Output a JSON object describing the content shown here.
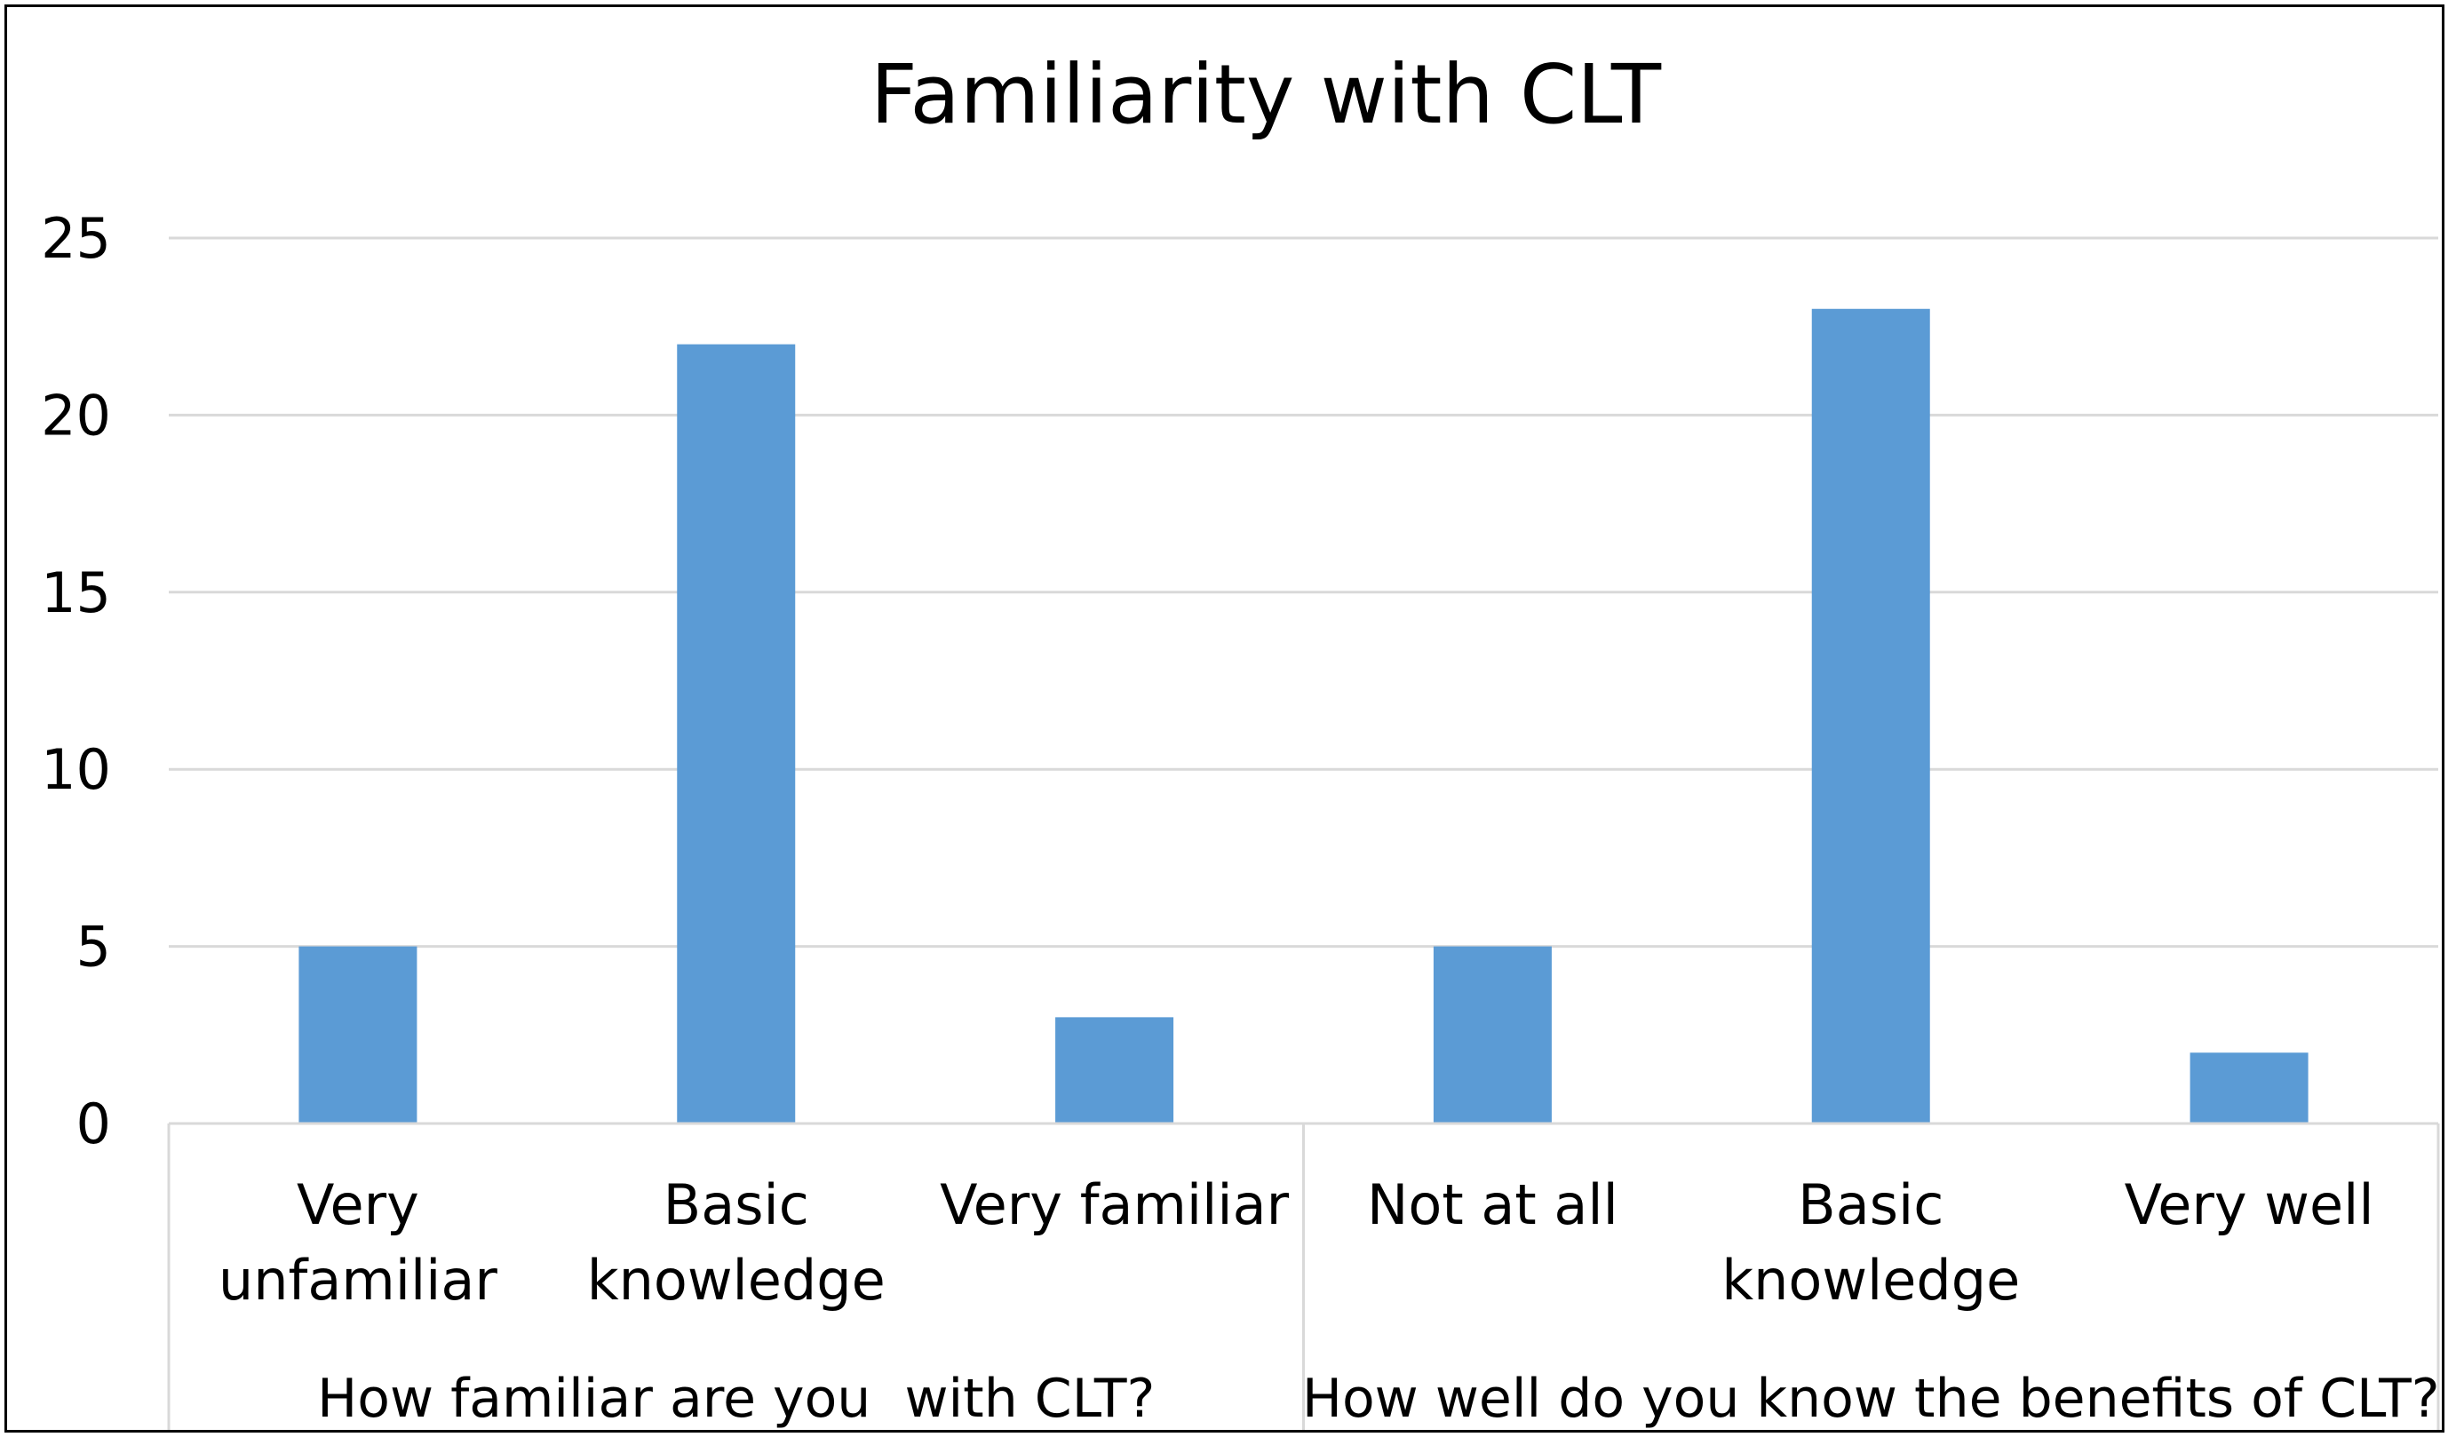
{
  "chart_data": {
    "type": "bar",
    "title": "Familiarity with CLT",
    "groups": [
      {
        "label": "How familiar are you  with CLT?",
        "categories": [
          [
            "Very",
            "unfamiliar"
          ],
          [
            "Basic",
            "knowledge"
          ],
          [
            "Very familiar"
          ]
        ],
        "values": [
          5,
          22,
          3
        ]
      },
      {
        "label": "How well do you know the benefits of CLT?",
        "categories": [
          [
            "Not at all"
          ],
          [
            "Basic",
            "knowledge"
          ],
          [
            "Very well"
          ]
        ],
        "values": [
          5,
          23,
          2
        ]
      }
    ],
    "ylim": [
      0,
      25
    ],
    "yticks": [
      0,
      5,
      10,
      15,
      20,
      25
    ],
    "grid": true,
    "bar_color": "#5b9bd5"
  }
}
